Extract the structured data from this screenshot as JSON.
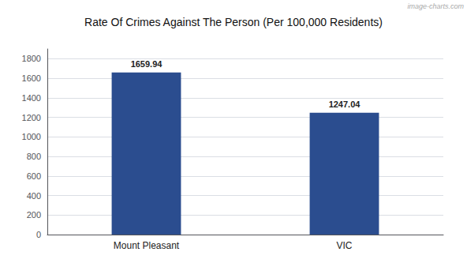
{
  "chart_data": {
    "type": "bar",
    "title": "Rate Of Crimes Against The Person (Per 100,000 Residents)",
    "annotations": [
      "image-charts.com"
    ],
    "categories": [
      "Mount Pleasant",
      "VIC"
    ],
    "values": [
      1659.94,
      1247.04
    ],
    "color": "#2b4d8f",
    "ylim": [
      0,
      1900
    ],
    "yticks": [
      0,
      200,
      400,
      600,
      800,
      1000,
      1200,
      1400,
      1600,
      1800
    ],
    "grid": true,
    "data_labels": true
  }
}
